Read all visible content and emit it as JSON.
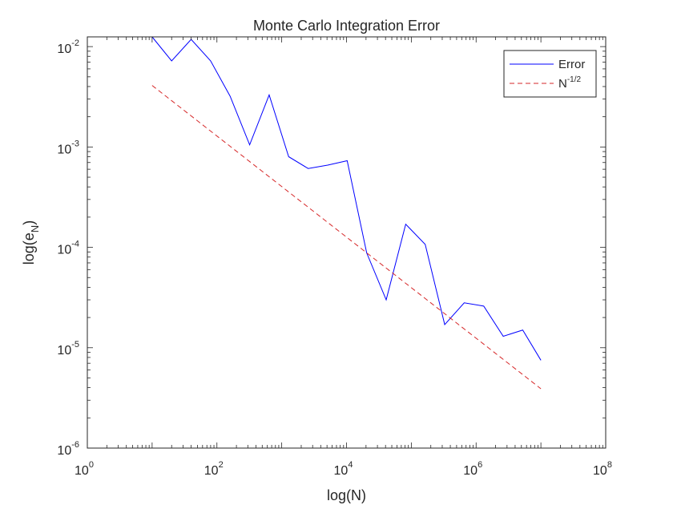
{
  "chart_data": {
    "type": "line",
    "title": "Monte Carlo Integration Error",
    "xlabel": "log(N)",
    "ylabel": {
      "base": "log(e",
      "sub": "N",
      "end": ")"
    },
    "x_scale": "log",
    "y_scale": "log",
    "xlim": [
      1,
      100000000
    ],
    "ylim": [
      1e-06,
      0.0125
    ],
    "grid": false,
    "legend_position": "top-right",
    "x_ticks": [
      {
        "value": 1,
        "base": "10",
        "exp": "0"
      },
      {
        "value": 100,
        "base": "10",
        "exp": "2"
      },
      {
        "value": 10000,
        "base": "10",
        "exp": "4"
      },
      {
        "value": 1000000,
        "base": "10",
        "exp": "6"
      },
      {
        "value": 100000000,
        "base": "10",
        "exp": "8"
      }
    ],
    "y_ticks": [
      {
        "value": 1e-06,
        "base": "10",
        "exp": "-6"
      },
      {
        "value": 1e-05,
        "base": "10",
        "exp": "-5"
      },
      {
        "value": 0.0001,
        "base": "10",
        "exp": "-4"
      },
      {
        "value": 0.001,
        "base": "10",
        "exp": "-3"
      },
      {
        "value": 0.01,
        "base": "10",
        "exp": "-2"
      }
    ],
    "series": [
      {
        "name": "Error",
        "color": "#0000ff",
        "style": "solid",
        "x": [
          10,
          20,
          40,
          80,
          160,
          320,
          640,
          1280,
          2560,
          5120,
          10240,
          20480,
          40960,
          81920,
          163840,
          327680,
          655360,
          1310720,
          2621440,
          5242880,
          10000000
        ],
        "y": [
          0.0125,
          0.0072,
          0.0118,
          0.0072,
          0.0032,
          0.00105,
          0.0033,
          0.0008,
          0.00061,
          0.00066,
          0.00073,
          8.8e-05,
          3e-05,
          0.00017,
          0.000107,
          1.7e-05,
          2.8e-05,
          2.6e-05,
          1.3e-05,
          1.5e-05,
          7.5e-06
        ]
      },
      {
        "name_base": "N",
        "name_exp": "-1/2",
        "color": "#d62728",
        "style": "dashed",
        "x": [
          10,
          10000000
        ],
        "y": [
          0.0041,
          3.9e-06
        ]
      }
    ]
  }
}
